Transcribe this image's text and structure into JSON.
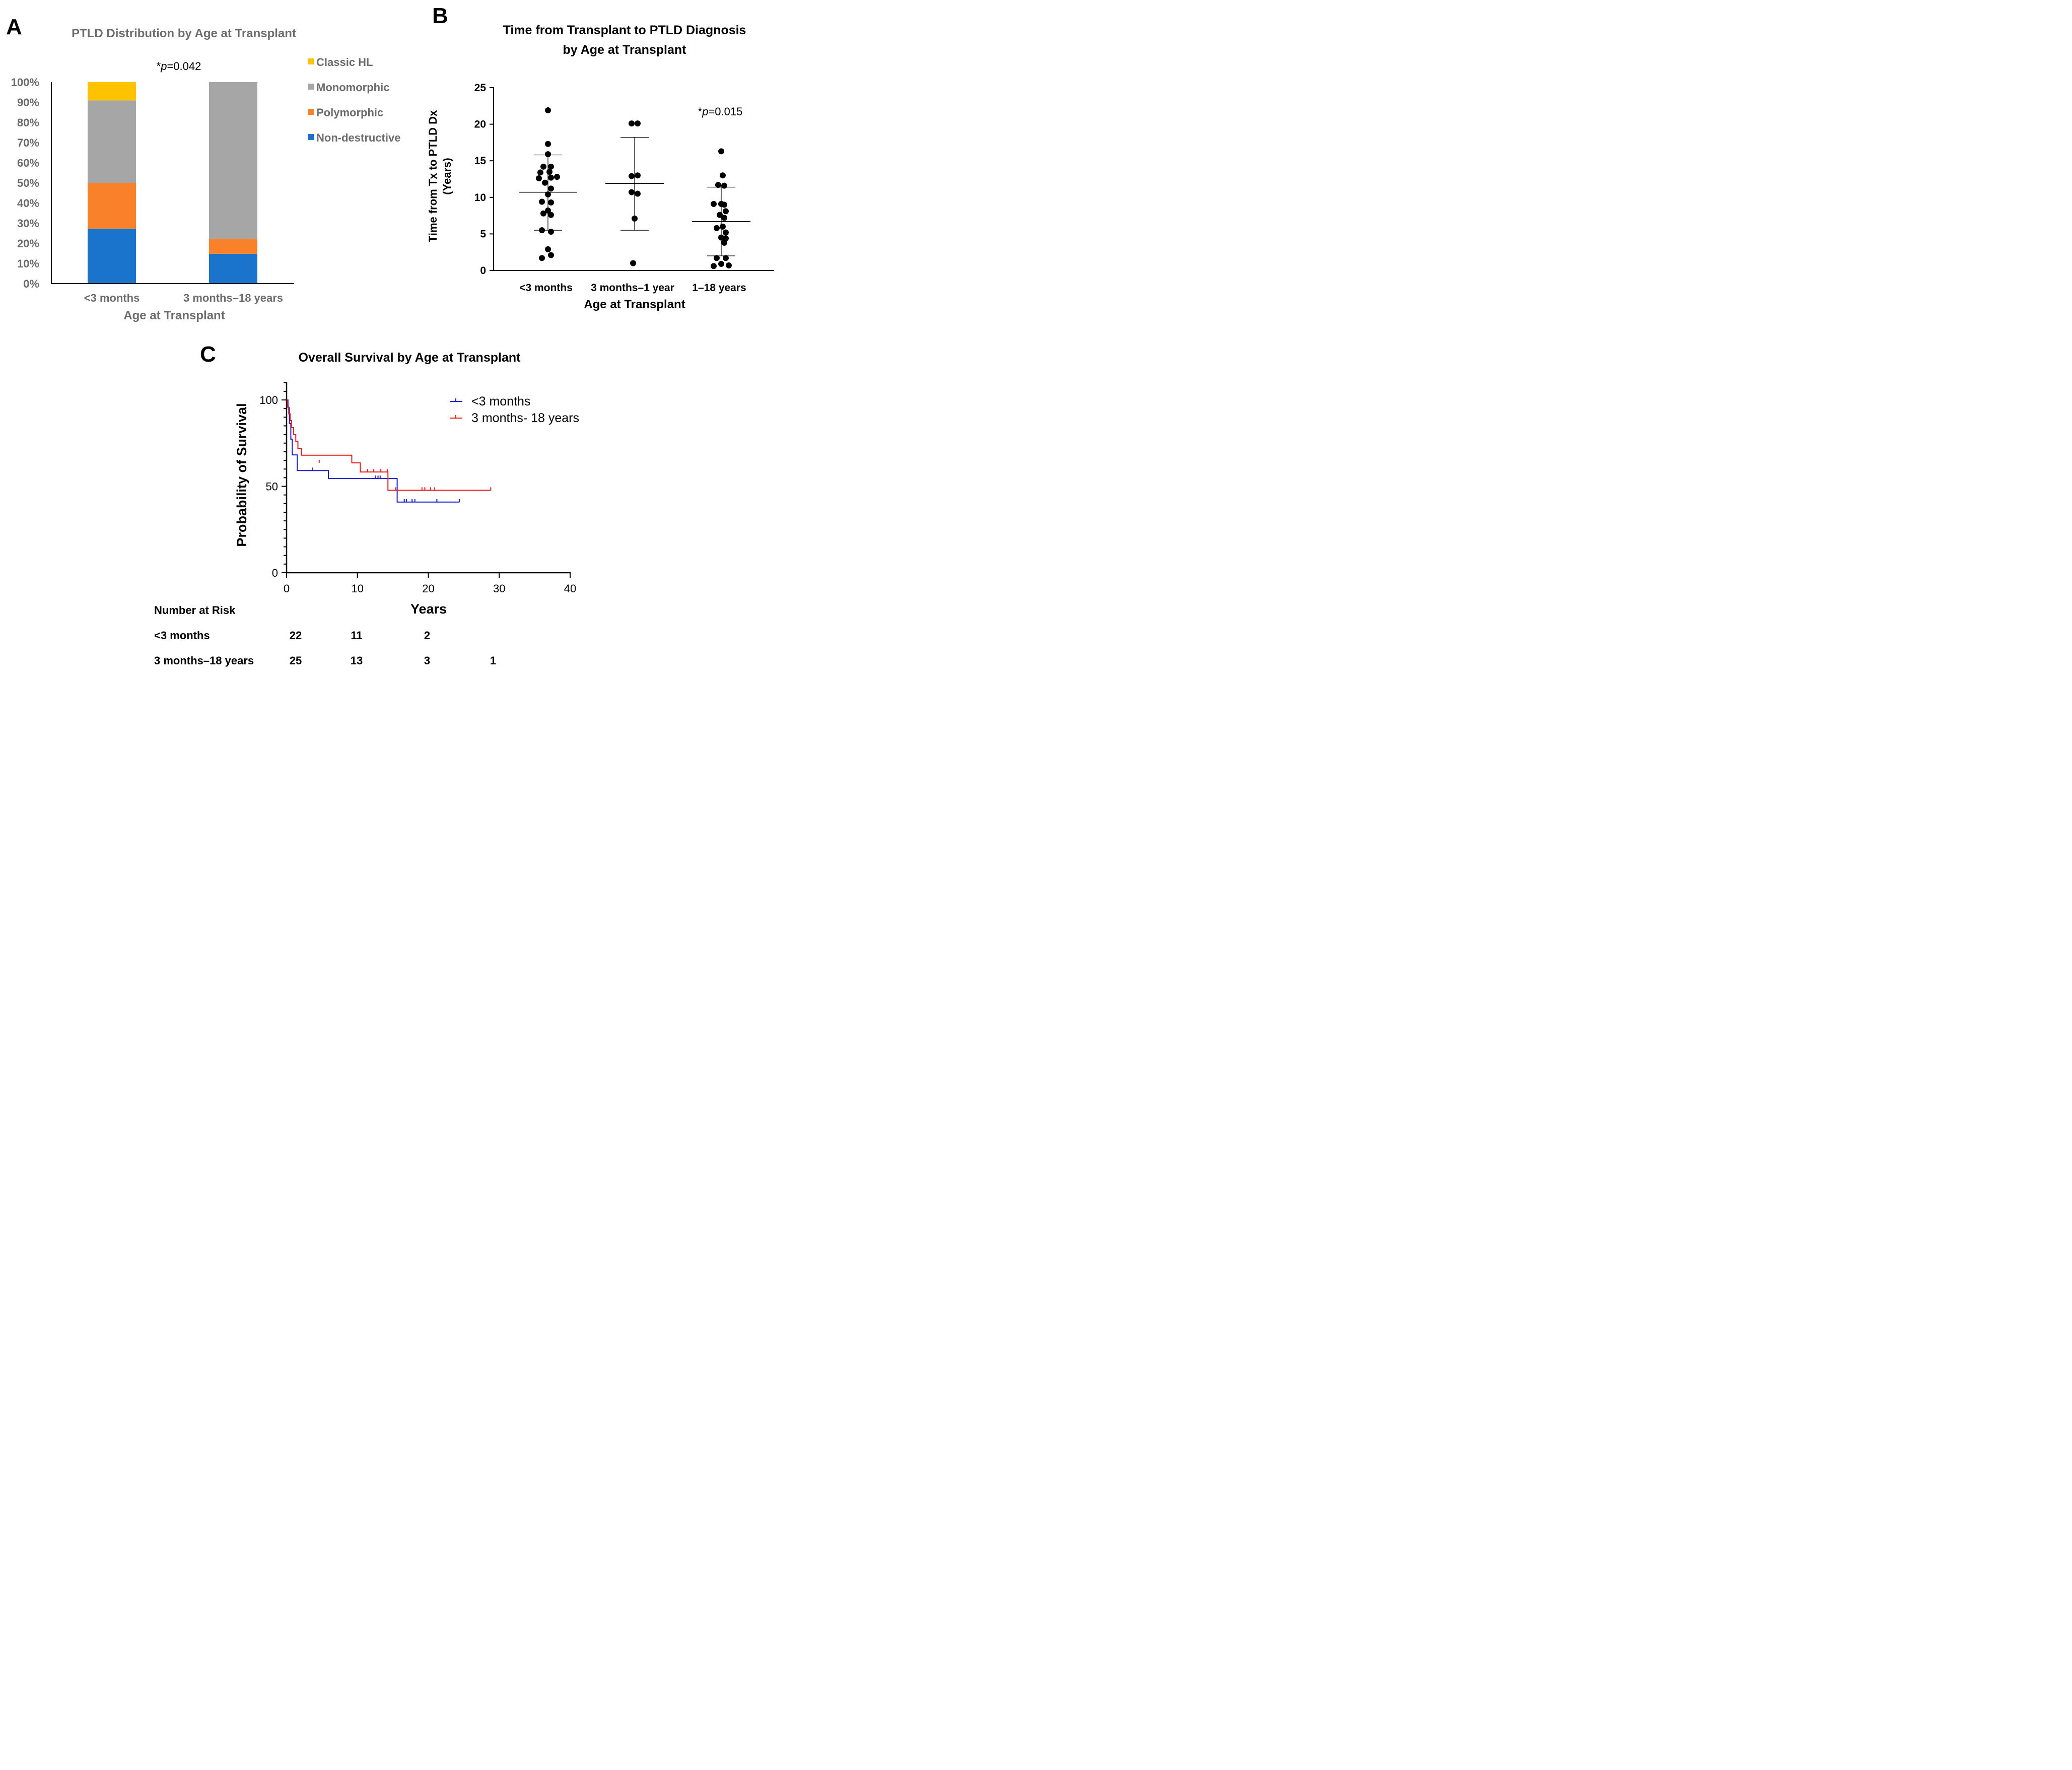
{
  "panels": {
    "a": {
      "letter": "A",
      "chart_data": {
        "type": "bar",
        "stacked": true,
        "title": "PTLD Distribution by Age at Transplant",
        "xlabel": "Age at Transplant",
        "ylabel": "",
        "ylim": [
          0,
          100
        ],
        "yticks": [
          "0%",
          "10%",
          "20%",
          "30%",
          "40%",
          "50%",
          "60%",
          "70%",
          "80%",
          "90%",
          "100%"
        ],
        "categories": [
          "<3 months",
          "3 months–18 years"
        ],
        "annotation": {
          "prefix": "*",
          "italic": "p",
          "suffix": "=0.042"
        },
        "series": [
          {
            "name": "Non-destructive",
            "color": "#1a74cc",
            "values": [
              27.3,
              14.8
            ]
          },
          {
            "name": "Polymorphic",
            "color": "#f8812a",
            "values": [
              22.7,
              7.4
            ]
          },
          {
            "name": "Monomorphic",
            "color": "#a6a6a6",
            "values": [
              40.9,
              77.8
            ]
          },
          {
            "name": "Classic HL",
            "color": "#fdc200",
            "values": [
              9.1,
              0
            ]
          }
        ],
        "legend_order": [
          "Classic HL",
          "Monomorphic",
          "Polymorphic",
          "Non-destructive"
        ]
      }
    },
    "b": {
      "letter": "B",
      "chart_data": {
        "type": "scatter",
        "title_lines": [
          "Time from Transplant to PTLD Diagnosis",
          "by Age at Transplant"
        ],
        "xlabel": "Age at Transplant",
        "ylabel_lines": [
          "Time from Tx to PTLD Dx",
          "(Years)"
        ],
        "ylim": [
          0,
          25
        ],
        "yticks": [
          "0",
          "5",
          "10",
          "15",
          "20",
          "25"
        ],
        "categories": [
          "<3 months",
          "3 months–1 year",
          "1–18 years"
        ],
        "annotation": {
          "prefix": "*",
          "italic": "p",
          "suffix": "=0.015"
        },
        "groups": [
          {
            "name": "<3 months",
            "mean": 10.7,
            "sd_low": 5.5,
            "sd_high": 15.8,
            "points": [
              [
                0,
                21.9
              ],
              [
                0,
                17.3
              ],
              [
                0,
                15.9
              ],
              [
                -0.15,
                14.2
              ],
              [
                0.1,
                14.2
              ],
              [
                -0.25,
                13.4
              ],
              [
                0.05,
                13.5
              ],
              [
                -0.3,
                12.6
              ],
              [
                0.1,
                12.7
              ],
              [
                0.3,
                12.8
              ],
              [
                -0.1,
                12.0
              ],
              [
                0.1,
                11.2
              ],
              [
                0,
                10.4
              ],
              [
                -0.2,
                9.4
              ],
              [
                0.1,
                9.3
              ],
              [
                0,
                8.2
              ],
              [
                -0.15,
                7.8
              ],
              [
                0.1,
                7.6
              ],
              [
                -0.2,
                5.5
              ],
              [
                0.1,
                5.3
              ],
              [
                0,
                2.9
              ],
              [
                -0.2,
                1.7
              ],
              [
                0.1,
                2.1
              ]
            ]
          },
          {
            "name": "3 months–1 year",
            "mean": 11.9,
            "sd_low": 5.5,
            "sd_high": 18.2,
            "points": [
              [
                -0.1,
                20.1
              ],
              [
                0.1,
                20.1
              ],
              [
                -0.1,
                12.9
              ],
              [
                0.1,
                13.0
              ],
              [
                -0.1,
                10.7
              ],
              [
                0.1,
                10.5
              ],
              [
                0,
                7.1
              ],
              [
                -0.05,
                1.0
              ]
            ]
          },
          {
            "name": "1–18 years",
            "mean": 6.7,
            "sd_low": 2.0,
            "sd_high": 11.4,
            "points": [
              [
                0,
                16.3
              ],
              [
                0.05,
                13.0
              ],
              [
                -0.1,
                11.7
              ],
              [
                0.1,
                11.6
              ],
              [
                -0.25,
                9.1
              ],
              [
                0,
                9.1
              ],
              [
                0.1,
                9.0
              ],
              [
                0.15,
                8.1
              ],
              [
                -0.05,
                7.6
              ],
              [
                0.1,
                7.2
              ],
              [
                -0.15,
                5.8
              ],
              [
                0.05,
                6.0
              ],
              [
                0.15,
                5.2
              ],
              [
                0,
                4.5
              ],
              [
                0.15,
                4.4
              ],
              [
                0.1,
                3.8
              ],
              [
                -0.15,
                1.7
              ],
              [
                -0.25,
                0.6
              ],
              [
                0,
                0.9
              ],
              [
                0.25,
                0.7
              ],
              [
                0.15,
                1.7
              ]
            ]
          }
        ]
      }
    },
    "c": {
      "letter": "C",
      "chart_data": {
        "type": "line",
        "subtype": "kaplan-meier",
        "title": "Overall Survival by Age at Transplant",
        "xlabel": "Years",
        "ylabel": "Probability of Survival",
        "xlim": [
          0,
          40
        ],
        "ylim": [
          0,
          110
        ],
        "xticks": [
          "0",
          "10",
          "20",
          "30",
          "40"
        ],
        "yticks": [
          "0",
          "50",
          "100"
        ],
        "series": [
          {
            "name": "<3 months",
            "color": "#1a1acc",
            "x": [
              0,
              0.2,
              0.4,
              0.6,
              0.8,
              1.5,
              5.9,
              14.6,
              15.6,
              24.4
            ],
            "y": [
              100,
              95.5,
              86.4,
              77.3,
              68.2,
              59.1,
              54.5,
              54.5,
              40.9,
              40.9
            ],
            "censored": [
              [
                3.7,
                59.1
              ],
              [
                12.5,
                54.5
              ],
              [
                12.9,
                54.5
              ],
              [
                13.2,
                54.5
              ],
              [
                16.6,
                40.9
              ],
              [
                16.9,
                40.9
              ],
              [
                17.7,
                40.9
              ],
              [
                18.1,
                40.9
              ],
              [
                21.2,
                40.9
              ],
              [
                24.4,
                40.9
              ]
            ]
          },
          {
            "name": "3 months- 18 years",
            "color": "#e81919",
            "x": [
              0,
              0.1,
              0.3,
              0.5,
              0.7,
              1.0,
              1.3,
              1.6,
              2.1,
              9.2,
              10.4,
              14.3,
              28.8
            ],
            "y": [
              100,
              96,
              92,
              88,
              84,
              80,
              76,
              72,
              68,
              63.6,
              58.3,
              47.7,
              47.7
            ],
            "censored": [
              [
                4.6,
                63.6
              ],
              [
                11.4,
                58.3
              ],
              [
                12.3,
                58.3
              ],
              [
                13.3,
                58.3
              ],
              [
                14.2,
                58.3
              ],
              [
                15.4,
                47.7
              ],
              [
                19.1,
                47.7
              ],
              [
                19.5,
                47.7
              ],
              [
                20.3,
                47.7
              ],
              [
                20.9,
                47.7
              ],
              [
                28.8,
                47.7
              ]
            ]
          }
        ],
        "risk_table": {
          "title": "Number at Risk",
          "columns_at_years": [
            0,
            10,
            20,
            30
          ],
          "rows": [
            {
              "label": "<3 months",
              "values": [
                "22",
                "11",
                "2",
                ""
              ]
            },
            {
              "label": "3 months–18 years",
              "values": [
                "25",
                "13",
                "3",
                "1"
              ]
            }
          ]
        }
      }
    }
  }
}
